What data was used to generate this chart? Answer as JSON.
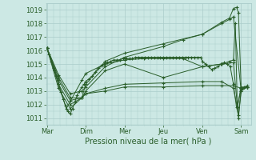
{
  "title": "Pression niveau de la mer( hPa )",
  "bg_color": "#cce8e4",
  "grid_color": "#aaccca",
  "line_color": "#2a5e2a",
  "ylim": [
    1010.5,
    1019.5
  ],
  "yticks": [
    1011,
    1012,
    1013,
    1014,
    1015,
    1016,
    1017,
    1018,
    1019
  ],
  "xlim": [
    -0.02,
    5.25
  ],
  "day_labels": [
    "Mar",
    "Dim",
    "Mer",
    "Jeu",
    "Ven",
    "Sam"
  ],
  "day_x": [
    0,
    1,
    2,
    3,
    4,
    5
  ],
  "series": [
    {
      "x": [
        0.0,
        0.06,
        0.12,
        0.18,
        0.24,
        0.3,
        0.36,
        0.42,
        0.48,
        0.54,
        0.6,
        0.66,
        0.72,
        0.78,
        0.84,
        0.9,
        0.96,
        1.0,
        1.08,
        1.16,
        1.24,
        1.32,
        1.4,
        1.48,
        1.56,
        1.64,
        1.72,
        1.8,
        1.88,
        1.96,
        2.04,
        2.12,
        2.2,
        2.28,
        2.36,
        2.44,
        2.52,
        2.6,
        2.68,
        2.76,
        2.84,
        2.92,
        3.0,
        3.08,
        3.16,
        3.24,
        3.32,
        3.4,
        3.48,
        3.56,
        3.64,
        3.72,
        3.8,
        3.88,
        3.96,
        4.0,
        4.08,
        4.16,
        4.24,
        4.32,
        4.4,
        4.48,
        4.56,
        4.64,
        4.72,
        4.8,
        4.88,
        4.93,
        5.0,
        5.08,
        5.16
      ],
      "y": [
        1016.2,
        1015.7,
        1015.2,
        1014.7,
        1014.1,
        1013.5,
        1012.9,
        1012.4,
        1011.9,
        1011.5,
        1011.3,
        1011.7,
        1012.2,
        1012.7,
        1013.0,
        1013.3,
        1013.5,
        1013.7,
        1013.9,
        1014.1,
        1014.4,
        1014.7,
        1014.9,
        1015.0,
        1015.1,
        1015.2,
        1015.3,
        1015.3,
        1015.3,
        1015.4,
        1015.4,
        1015.4,
        1015.4,
        1015.5,
        1015.5,
        1015.5,
        1015.5,
        1015.5,
        1015.5,
        1015.5,
        1015.5,
        1015.5,
        1015.5,
        1015.5,
        1015.5,
        1015.5,
        1015.5,
        1015.5,
        1015.5,
        1015.5,
        1015.5,
        1015.5,
        1015.5,
        1015.5,
        1015.5,
        1015.2,
        1015.0,
        1014.8,
        1014.6,
        1014.7,
        1014.8,
        1015.0,
        1015.1,
        1015.0,
        1014.8,
        1013.5,
        1011.8,
        1011.2,
        1013.0,
        1013.3,
        1013.4
      ]
    },
    {
      "x": [
        0.0,
        0.2,
        0.5,
        0.9,
        1.0,
        1.5,
        2.0,
        2.5,
        3.0,
        3.5,
        4.0,
        4.5,
        4.8,
        4.93,
        5.0,
        5.16
      ],
      "y": [
        1016.2,
        1014.5,
        1011.7,
        1013.8,
        1014.3,
        1015.0,
        1015.3,
        1015.4,
        1015.4,
        1015.4,
        1014.8,
        1015.0,
        1015.1,
        1011.0,
        1013.1,
        1013.3
      ]
    },
    {
      "x": [
        0.0,
        0.3,
        0.6,
        0.9,
        1.0,
        1.5,
        2.0,
        3.0,
        4.0,
        4.5,
        4.7,
        4.8,
        4.88,
        4.93,
        5.0,
        5.16
      ],
      "y": [
        1016.2,
        1013.2,
        1011.7,
        1012.5,
        1013.5,
        1015.2,
        1015.8,
        1016.5,
        1017.2,
        1018.1,
        1018.4,
        1019.1,
        1019.2,
        1018.8,
        1013.2,
        1013.3
      ]
    },
    {
      "x": [
        0.0,
        0.3,
        0.6,
        0.9,
        1.0,
        1.5,
        2.0,
        3.0,
        4.0,
        4.5,
        4.7,
        4.8,
        4.85,
        4.9,
        5.0,
        5.16
      ],
      "y": [
        1016.2,
        1013.5,
        1012.0,
        1012.5,
        1013.0,
        1014.5,
        1015.0,
        1014.0,
        1014.8,
        1015.0,
        1015.2,
        1015.3,
        1018.0,
        1011.8,
        1013.3,
        1013.3
      ]
    },
    {
      "x": [
        0.0,
        0.3,
        0.6,
        0.9,
        1.0,
        1.5,
        2.0,
        3.0,
        4.0,
        4.5,
        4.8,
        4.9,
        5.0,
        5.16
      ],
      "y": [
        1016.2,
        1013.8,
        1012.3,
        1012.5,
        1012.8,
        1013.2,
        1013.5,
        1013.6,
        1013.7,
        1013.7,
        1013.2,
        1011.8,
        1013.2,
        1013.3
      ]
    },
    {
      "x": [
        0.0,
        0.3,
        0.6,
        0.9,
        1.0,
        1.5,
        2.0,
        3.0,
        4.0,
        4.5,
        4.8,
        5.0,
        5.16
      ],
      "y": [
        1016.2,
        1014.0,
        1012.5,
        1012.5,
        1012.8,
        1013.0,
        1013.3,
        1013.3,
        1013.4,
        1013.4,
        1013.4,
        1013.2,
        1013.3
      ]
    },
    {
      "x": [
        0.0,
        0.3,
        0.6,
        0.9,
        1.0,
        1.5,
        2.0,
        3.0,
        3.5,
        4.0,
        4.5,
        4.7,
        4.8,
        5.0,
        5.16
      ],
      "y": [
        1016.2,
        1014.2,
        1012.8,
        1013.0,
        1013.3,
        1014.8,
        1015.5,
        1016.3,
        1016.8,
        1017.2,
        1018.0,
        1018.3,
        1018.5,
        1013.0,
        1013.3
      ]
    }
  ]
}
